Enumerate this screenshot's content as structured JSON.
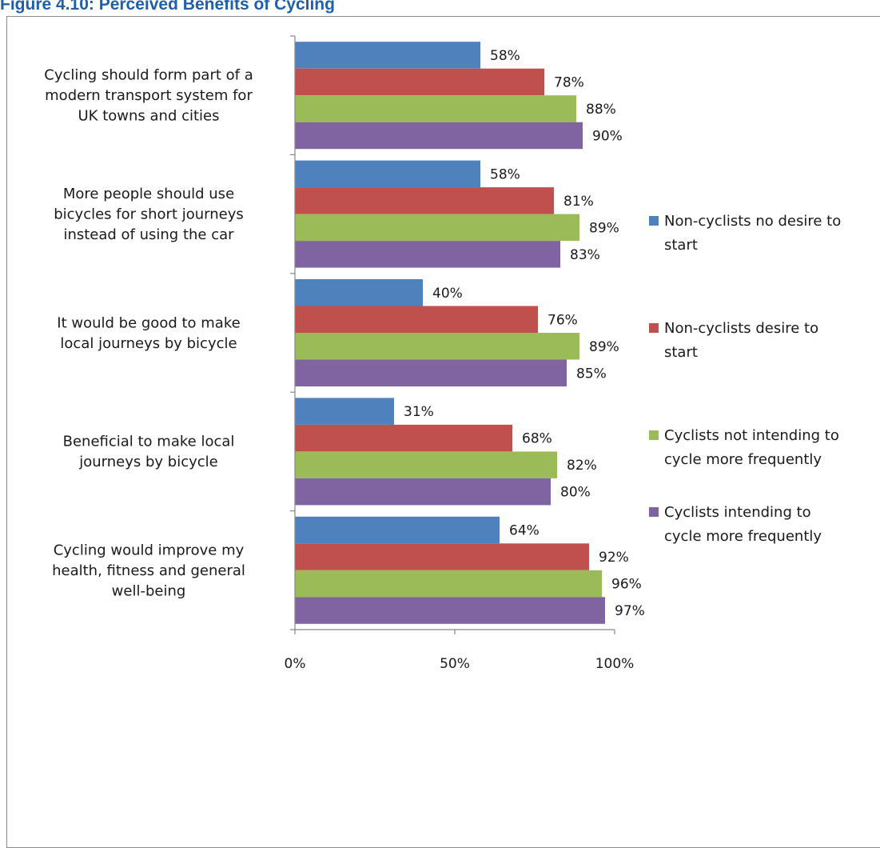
{
  "figure": {
    "title": "Figure 4.10: Perceived Benefits of Cycling"
  },
  "chart_data": {
    "type": "bar",
    "orientation": "horizontal",
    "title": "",
    "xlabel": "",
    "ylabel": "",
    "xlim": [
      0,
      100
    ],
    "x_ticks": [
      "0%",
      "50%",
      "100%"
    ],
    "grid": false,
    "legend_position": "right",
    "categories": [
      [
        "Cycling should form part of a",
        "modern transport system for",
        "UK towns and cities"
      ],
      [
        "More people should use",
        "bicycles for short journeys",
        "instead of using the car"
      ],
      [
        "It would be good to make",
        "local journeys by bicycle"
      ],
      [
        "Beneficial to make local",
        "journeys  by bicycle"
      ],
      [
        "Cycling would improve my",
        "health, fitness and general",
        "well-being"
      ]
    ],
    "series": [
      {
        "name": [
          "Non-cyclists no desire to",
          "start"
        ],
        "color": "#4f81bd",
        "values": [
          58,
          58,
          40,
          31,
          64
        ]
      },
      {
        "name": [
          "Non-cyclists desire to",
          "start"
        ],
        "color": "#c0504d",
        "values": [
          78,
          81,
          76,
          68,
          92
        ]
      },
      {
        "name": [
          "Cyclists not intending to",
          "cycle more frequently"
        ],
        "color": "#9bbb59",
        "values": [
          88,
          89,
          89,
          82,
          96
        ]
      },
      {
        "name": [
          "Cyclists intending to",
          "cycle more frequently"
        ],
        "color": "#8064a2",
        "values": [
          90,
          83,
          85,
          80,
          97
        ]
      }
    ]
  }
}
